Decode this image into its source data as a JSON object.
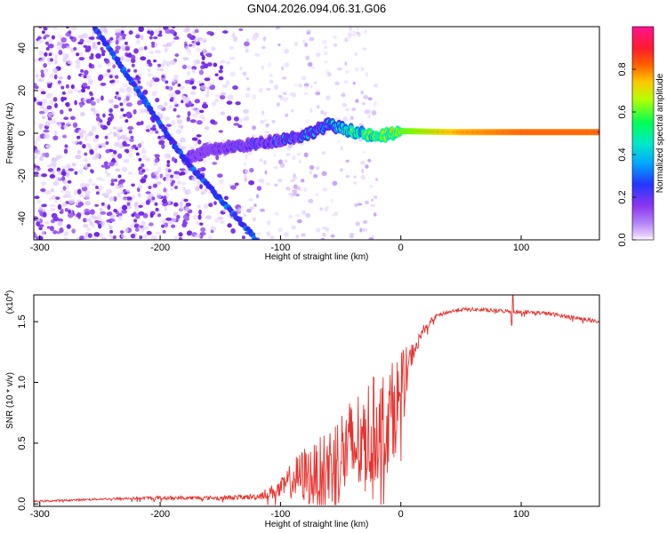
{
  "figure_title": "GN04.2026.094.06.31.G06",
  "chart_data": [
    {
      "type": "heatmap",
      "title": "GN04.2026.094.06.31.G06",
      "xlabel": "Height of straight line (km)",
      "ylabel": "Frequency (Hz)",
      "xlim": [
        -305,
        165
      ],
      "ylim": [
        -50,
        50
      ],
      "xticks": [
        -300,
        -200,
        -100,
        0,
        100
      ],
      "xtick_labels": [
        "-300",
        "-200",
        "-100",
        "0",
        "100"
      ],
      "yticks": [
        -40,
        -20,
        0,
        20,
        40
      ],
      "ytick_labels": [
        "-40",
        "-20",
        "0",
        "20",
        "40"
      ],
      "colorbar": {
        "label": "Normalized spectral amplitude",
        "range": [
          0,
          1
        ],
        "ticks": [
          0.0,
          0.2,
          0.4,
          0.6,
          0.8
        ],
        "tick_labels": [
          "0.0",
          "0.2",
          "0.4",
          "0.6",
          "0.8"
        ],
        "colors": [
          "#ffffff",
          "#e3d0ff",
          "#9a55f5",
          "#6a1be5",
          "#1a2cff",
          "#00c8ff",
          "#00ff80",
          "#7dff00",
          "#ffd700",
          "#ff5a00",
          "#ff1e50",
          "#ff1493"
        ]
      },
      "features": [
        {
          "name": "main-ridge",
          "x": [
            -180,
            -150,
            -120,
            -100,
            -80,
            -60,
            -40,
            -20,
            0,
            50,
            100,
            165
          ],
          "y": [
            -12,
            -7,
            -5,
            -3,
            -1,
            4,
            1,
            -2,
            1,
            0.5,
            0.5,
            0.5
          ],
          "amplitude": [
            0.25,
            0.3,
            0.35,
            0.38,
            0.42,
            0.45,
            0.6,
            0.65,
            0.75,
            0.9,
            0.95,
            0.95
          ]
        },
        {
          "name": "upper-diagonal",
          "x": [
            -255,
            -180
          ],
          "y": [
            50,
            -12
          ],
          "amplitude": [
            0.3,
            0.3
          ]
        },
        {
          "name": "lower-diagonal",
          "x": [
            -180,
            -120
          ],
          "y": [
            -12,
            -50
          ],
          "amplitude": [
            0.3,
            0.3
          ]
        }
      ]
    },
    {
      "type": "line",
      "xlabel": "Height of straight line (km)",
      "ylabel": "SNR (10 * v/v)",
      "scale_label": "(x10",
      "scale_exponent": "4",
      "xlim": [
        -305,
        165
      ],
      "ylim": [
        -0.02,
        1.72
      ],
      "xticks": [
        -300,
        -200,
        -100,
        0,
        100
      ],
      "xtick_labels": [
        "-300",
        "-200",
        "-100",
        "0",
        "100"
      ],
      "yticks": [
        0.0,
        0.5,
        1.0,
        1.5
      ],
      "ytick_labels": [
        "0.0",
        "0.5",
        "1.0",
        "1.5"
      ],
      "series": [
        {
          "name": "SNR",
          "color": "#e8322d",
          "x": [
            -305,
            -250,
            -200,
            -150,
            -120,
            -100,
            -90,
            -80,
            -70,
            -60,
            -50,
            -40,
            -30,
            -20,
            -10,
            0,
            10,
            20,
            30,
            40,
            50,
            60,
            80,
            100,
            120,
            140,
            165
          ],
          "y": [
            0.02,
            0.04,
            0.05,
            0.05,
            0.06,
            0.12,
            0.2,
            0.24,
            0.22,
            0.3,
            0.4,
            0.45,
            0.55,
            0.62,
            0.7,
            0.9,
            1.25,
            1.45,
            1.55,
            1.58,
            1.6,
            1.6,
            1.59,
            1.58,
            1.57,
            1.54,
            1.5
          ],
          "noise": [
            0.01,
            0.01,
            0.02,
            0.02,
            0.03,
            0.1,
            0.2,
            0.3,
            0.35,
            0.45,
            0.5,
            0.55,
            0.6,
            0.55,
            0.55,
            0.45,
            0.1,
            0.05,
            0.02,
            0.02,
            0.02,
            0.02,
            0.02,
            0.02,
            0.02,
            0.02,
            0.02
          ]
        }
      ]
    }
  ]
}
